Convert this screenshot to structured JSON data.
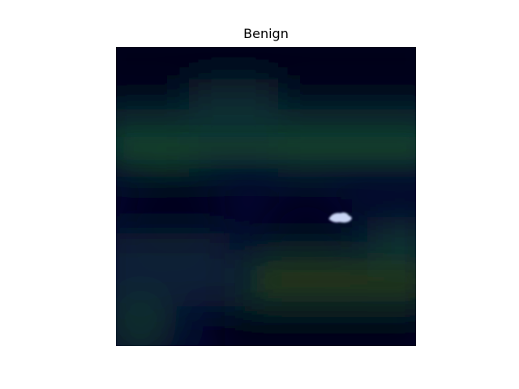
{
  "figure": {
    "title": "Benign"
  },
  "image": {
    "colors": {
      "base": "#020428",
      "deep": "#000018",
      "teal": "#12452f",
      "olive": "#2a3a12",
      "lesion": "#c8d4f2"
    }
  }
}
